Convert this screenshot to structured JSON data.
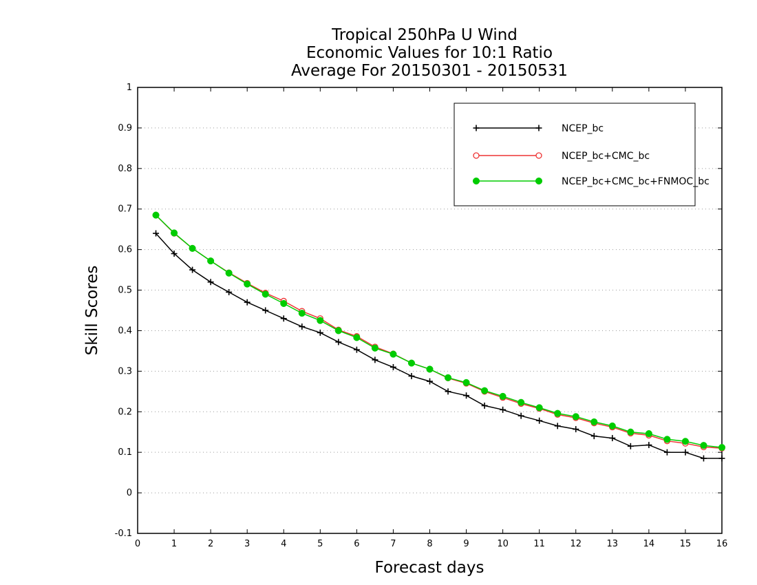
{
  "chart_data": {
    "type": "line",
    "title": [
      "Tropical 250hPa U Wind",
      "Economic Values for 10:1 Ratio",
      "Average For 20150301 - 20150531"
    ],
    "xlabel": "Forecast days",
    "ylabel": "Skill Scores",
    "xlim": [
      0,
      16
    ],
    "ylim": [
      -0.1,
      1
    ],
    "xticks": [
      "0",
      "1",
      "2",
      "3",
      "4",
      "5",
      "6",
      "7",
      "8",
      "9",
      "10",
      "11",
      "12",
      "13",
      "14",
      "15",
      "16"
    ],
    "yticks": [
      "-0.1",
      "0",
      "0.1",
      "0.2",
      "0.3",
      "0.4",
      "0.5",
      "0.6",
      "0.7",
      "0.8",
      "0.9",
      "1"
    ],
    "grid": true,
    "legend_position": "top-right",
    "x": [
      0.5,
      1,
      1.5,
      2,
      2.5,
      3,
      3.5,
      4,
      4.5,
      5,
      5.5,
      6,
      6.5,
      7,
      7.5,
      8,
      8.5,
      9,
      9.5,
      10,
      10.5,
      11,
      11.5,
      12,
      12.5,
      13,
      13.5,
      14,
      14.5,
      15,
      15.5,
      16
    ],
    "series": [
      {
        "name": "NCEP_bc",
        "color": "#000000",
        "marker": "plus",
        "values": [
          0.64,
          0.59,
          0.55,
          0.52,
          0.495,
          0.47,
          0.45,
          0.43,
          0.41,
          0.395,
          0.372,
          0.353,
          0.328,
          0.31,
          0.288,
          0.275,
          0.25,
          0.24,
          0.215,
          0.205,
          0.19,
          0.178,
          0.165,
          0.157,
          0.14,
          0.135,
          0.115,
          0.118,
          0.1,
          0.1,
          0.085,
          0.085
        ]
      },
      {
        "name": "NCEP_bc+CMC_bc",
        "color": "#ee3333",
        "marker": "open-circle",
        "values": [
          0.685,
          0.64,
          0.603,
          0.572,
          0.543,
          0.517,
          0.493,
          0.473,
          0.448,
          0.43,
          0.402,
          0.386,
          0.36,
          0.343,
          0.32,
          0.305,
          0.283,
          0.27,
          0.25,
          0.235,
          0.22,
          0.208,
          0.193,
          0.185,
          0.172,
          0.162,
          0.147,
          0.142,
          0.128,
          0.122,
          0.113,
          0.11
        ]
      },
      {
        "name": "NCEP_bc+CMC_bc+FNMOC_bc",
        "color": "#00cc00",
        "marker": "filled-circle",
        "values": [
          0.685,
          0.641,
          0.603,
          0.572,
          0.542,
          0.515,
          0.49,
          0.467,
          0.443,
          0.425,
          0.4,
          0.383,
          0.357,
          0.342,
          0.32,
          0.305,
          0.284,
          0.272,
          0.252,
          0.238,
          0.223,
          0.21,
          0.196,
          0.188,
          0.175,
          0.165,
          0.15,
          0.146,
          0.132,
          0.127,
          0.117,
          0.112
        ]
      }
    ]
  }
}
